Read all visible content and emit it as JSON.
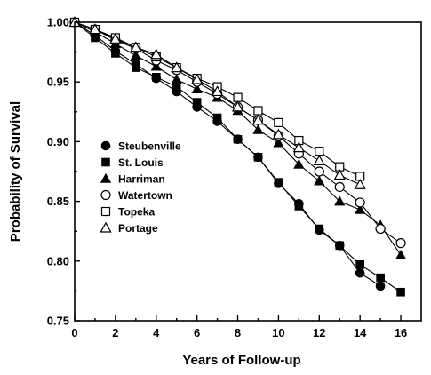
{
  "chart_data": {
    "type": "line",
    "title": "",
    "xlabel": "Years of Follow-up",
    "ylabel": "Probability of Survival",
    "xlim": [
      0,
      17
    ],
    "ylim": [
      0.75,
      1.0
    ],
    "xticks": [
      0,
      2,
      4,
      6,
      8,
      10,
      12,
      14,
      16
    ],
    "yticks": [
      0.75,
      0.8,
      0.85,
      0.9,
      0.95,
      1.0
    ],
    "ytick_labels": [
      "0.75",
      "0.80",
      "0.85",
      "0.90",
      "0.95",
      "1.00"
    ],
    "grid": false,
    "legend_position": "left-center",
    "series": [
      {
        "name": "Steubenville",
        "marker": "filled-circle",
        "x": [
          0,
          1,
          2,
          3,
          4,
          5,
          6,
          7,
          8,
          9,
          10,
          11,
          12,
          13,
          14,
          15
        ],
        "values": [
          1.0,
          0.989,
          0.976,
          0.965,
          0.953,
          0.942,
          0.929,
          0.917,
          0.902,
          0.887,
          0.865,
          0.848,
          0.826,
          0.813,
          0.79,
          0.779
        ]
      },
      {
        "name": "St. Louis",
        "marker": "filled-square",
        "x": [
          0,
          1,
          2,
          3,
          4,
          5,
          6,
          7,
          8,
          9,
          10,
          11,
          12,
          13,
          14,
          15,
          16
        ],
        "values": [
          1.0,
          0.987,
          0.974,
          0.962,
          0.954,
          0.946,
          0.933,
          0.92,
          0.902,
          0.887,
          0.866,
          0.846,
          0.827,
          0.813,
          0.797,
          0.786,
          0.774
        ]
      },
      {
        "name": "Harriman",
        "marker": "filled-triangle",
        "x": [
          0,
          1,
          2,
          3,
          4,
          5,
          6,
          7,
          8,
          9,
          10,
          11,
          12,
          13,
          14,
          15,
          16
        ],
        "values": [
          1.0,
          0.992,
          0.982,
          0.972,
          0.963,
          0.952,
          0.944,
          0.937,
          0.926,
          0.91,
          0.899,
          0.881,
          0.867,
          0.85,
          0.843,
          0.83,
          0.805
        ]
      },
      {
        "name": "Watertown",
        "marker": "open-circle",
        "x": [
          0,
          1,
          2,
          3,
          4,
          5,
          6,
          7,
          8,
          9,
          10,
          11,
          12,
          13,
          14,
          15,
          16
        ],
        "values": [
          1.0,
          0.994,
          0.985,
          0.978,
          0.968,
          0.96,
          0.95,
          0.94,
          0.929,
          0.918,
          0.905,
          0.89,
          0.875,
          0.862,
          0.849,
          0.827,
          0.815
        ]
      },
      {
        "name": "Topeka",
        "marker": "open-square",
        "x": [
          0,
          1,
          2,
          3,
          4,
          5,
          6,
          7,
          8,
          9,
          10,
          11,
          12,
          13,
          14
        ],
        "values": [
          1.0,
          0.994,
          0.987,
          0.979,
          0.971,
          0.962,
          0.953,
          0.946,
          0.937,
          0.926,
          0.916,
          0.901,
          0.892,
          0.879,
          0.871
        ]
      },
      {
        "name": "Portage",
        "marker": "open-triangle",
        "x": [
          0,
          1,
          2,
          3,
          4,
          5,
          6,
          7,
          8,
          9,
          10,
          11,
          12,
          13,
          14
        ],
        "values": [
          1.0,
          0.994,
          0.986,
          0.979,
          0.973,
          0.962,
          0.952,
          0.942,
          0.929,
          0.918,
          0.906,
          0.895,
          0.884,
          0.872,
          0.864
        ]
      }
    ]
  }
}
